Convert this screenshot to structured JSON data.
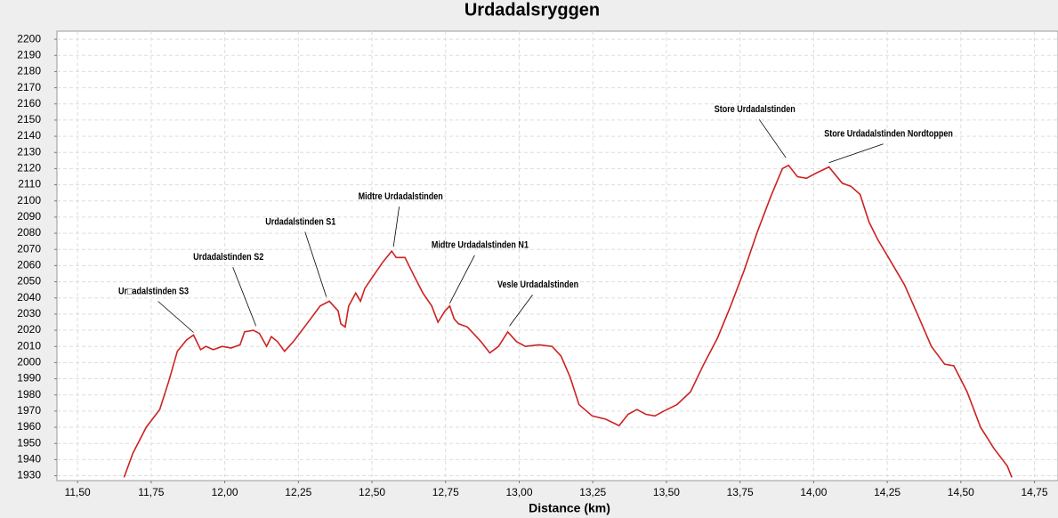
{
  "chart_data": {
    "type": "line",
    "title": "Urdadalsryggen",
    "x_label": "Distance (km)",
    "color": "#cc2222",
    "grid": true,
    "xlim": [
      11.43,
      14.83
    ],
    "ylim": [
      1927,
      2205
    ],
    "xticks": [
      {
        "value": 11.5,
        "label": "11,50"
      },
      {
        "value": 11.75,
        "label": "11,75"
      },
      {
        "value": 12.0,
        "label": "12,00"
      },
      {
        "value": 12.25,
        "label": "12,25"
      },
      {
        "value": 12.5,
        "label": "12,50"
      },
      {
        "value": 12.75,
        "label": "12,75"
      },
      {
        "value": 13.0,
        "label": "13,00"
      },
      {
        "value": 13.25,
        "label": "13,25"
      },
      {
        "value": 13.5,
        "label": "13,50"
      },
      {
        "value": 13.75,
        "label": "13,75"
      },
      {
        "value": 14.0,
        "label": "14,00"
      },
      {
        "value": 14.25,
        "label": "14,25"
      },
      {
        "value": 14.5,
        "label": "14,50"
      },
      {
        "value": 14.75,
        "label": "14,75"
      }
    ],
    "yticks": [
      1930,
      1940,
      1950,
      1960,
      1970,
      1980,
      1990,
      2000,
      2010,
      2020,
      2030,
      2040,
      2050,
      2060,
      2070,
      2080,
      2090,
      2100,
      2110,
      2120,
      2130,
      2140,
      2150,
      2160,
      2170,
      2180,
      2190,
      2200
    ],
    "x": [
      11.658,
      11.688,
      11.733,
      11.779,
      11.809,
      11.839,
      11.87,
      11.894,
      11.918,
      11.936,
      11.961,
      11.991,
      12.021,
      12.052,
      12.067,
      12.097,
      12.118,
      12.142,
      12.158,
      12.179,
      12.203,
      12.233,
      12.279,
      12.324,
      12.355,
      12.37,
      12.385,
      12.394,
      12.409,
      12.421,
      12.445,
      12.461,
      12.476,
      12.506,
      12.536,
      12.567,
      12.582,
      12.612,
      12.642,
      12.673,
      12.703,
      12.724,
      12.748,
      12.764,
      12.779,
      12.794,
      12.824,
      12.87,
      12.9,
      12.93,
      12.961,
      12.991,
      13.021,
      13.067,
      13.112,
      13.142,
      13.173,
      13.203,
      13.248,
      13.294,
      13.339,
      13.37,
      13.4,
      13.43,
      13.461,
      13.491,
      13.536,
      13.582,
      13.627,
      13.673,
      13.718,
      13.764,
      13.809,
      13.855,
      13.894,
      13.915,
      13.945,
      13.976,
      14.006,
      14.052,
      14.097,
      14.127,
      14.158,
      14.188,
      14.218,
      14.264,
      14.309,
      14.355,
      14.4,
      14.445,
      14.476,
      14.521,
      14.567,
      14.612,
      14.658,
      14.673
    ],
    "values": [
      1929,
      1944,
      1960,
      1971,
      1988,
      2007,
      2014,
      2017,
      2008,
      2010,
      2008,
      2010,
      2009,
      2011,
      2019,
      2020,
      2018,
      2010,
      2016,
      2013,
      2007,
      2013,
      2024,
      2035,
      2038,
      2035,
      2032,
      2024,
      2022,
      2035,
      2043,
      2038,
      2046,
      2054,
      2062,
      2069,
      2065,
      2065,
      2054,
      2043,
      2035,
      2025,
      2032,
      2035,
      2027,
      2024,
      2022,
      2013,
      2006,
      2010,
      2019,
      2013,
      2010,
      2011,
      2010,
      2004,
      1991,
      1974,
      1967,
      1965,
      1961,
      1968,
      1971,
      1968,
      1967,
      1970,
      1974,
      1982,
      1999,
      2015,
      2035,
      2057,
      2081,
      2103,
      2120,
      2122,
      2115,
      2114,
      2117,
      2121,
      2111,
      2109,
      2104,
      2087,
      2076,
      2062,
      2048,
      2029,
      2010,
      1999,
      1998,
      1982,
      1960,
      1947,
      1936,
      1929
    ],
    "annotations": [
      {
        "text": "Ur□adalstinden S3",
        "x": 11.894,
        "y": 2017
      },
      {
        "text": "Urdadalstinden S2",
        "x": 12.106,
        "y": 2021
      },
      {
        "text": "Urdadalstinden S1",
        "x": 12.345,
        "y": 2039
      },
      {
        "text": "Midtre Urdadalstinden",
        "x": 12.573,
        "y": 2070
      },
      {
        "text": "Midtre Urdadalstinden N1",
        "x": 12.764,
        "y": 2035
      },
      {
        "text": "Vesle Urdadalstinden",
        "x": 12.967,
        "y": 2021
      },
      {
        "text": "Store Urdadalstinden",
        "x": 13.906,
        "y": 2125
      },
      {
        "text": "Store Urdadalstinden Nordtoppen",
        "x": 14.052,
        "y": 2122
      }
    ]
  }
}
